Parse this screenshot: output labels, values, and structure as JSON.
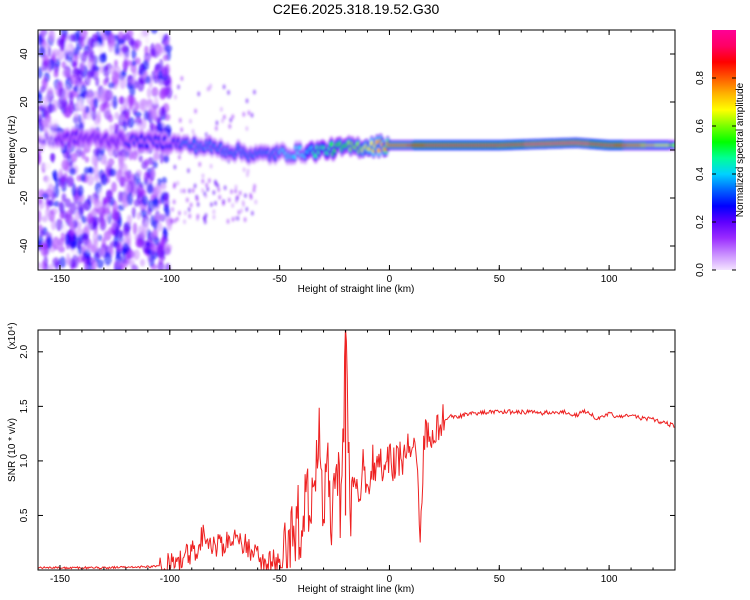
{
  "title": "C2E6.2025.318.19.52.G30",
  "colorbar": {
    "label": "Normalized spectral amplitude",
    "ticks": [
      "0.0",
      "0.2",
      "0.4",
      "0.6",
      "0.8"
    ],
    "tick_values": [
      0.0,
      0.2,
      0.4,
      0.6,
      0.8
    ],
    "colors": [
      "#f4e4ff",
      "#c88cff",
      "#9a2cff",
      "#5e00ff",
      "#0000ff",
      "#0064ff",
      "#00d2ff",
      "#00ff96",
      "#00ff00",
      "#7aff00",
      "#ffff00",
      "#ffb400",
      "#ff5a00",
      "#ff0000",
      "#ff0064",
      "#ff0096"
    ]
  },
  "chart_data": [
    {
      "type": "heatmap",
      "title": "C2E6.2025.318.19.52.G30",
      "xlabel": "Height of straight line (km)",
      "ylabel": "Frequency (Hz)",
      "xlim": [
        -160,
        130
      ],
      "ylim": [
        -50,
        50
      ],
      "xticks": [
        -150,
        -100,
        -50,
        0,
        50,
        100
      ],
      "yticks": [
        -40,
        -20,
        0,
        20,
        40
      ],
      "colorscale_label": "Normalized spectral amplitude",
      "ridge": [
        {
          "x": -160,
          "f": 4,
          "a": 0.2
        },
        {
          "x": -140,
          "f": 5,
          "a": 0.22
        },
        {
          "x": -120,
          "f": 4,
          "a": 0.25
        },
        {
          "x": -100,
          "f": 3,
          "a": 0.3
        },
        {
          "x": -80,
          "f": 1,
          "a": 0.35
        },
        {
          "x": -60,
          "f": -2,
          "a": 0.35
        },
        {
          "x": -40,
          "f": -1,
          "a": 0.4
        },
        {
          "x": -20,
          "f": 1,
          "a": 0.55
        },
        {
          "x": 0,
          "f": 2,
          "a": 0.75
        },
        {
          "x": 20,
          "f": 2,
          "a": 0.9
        },
        {
          "x": 50,
          "f": 2,
          "a": 0.92
        },
        {
          "x": 85,
          "f": 3,
          "a": 0.97
        },
        {
          "x": 100,
          "f": 2,
          "a": 0.9
        },
        {
          "x": 130,
          "f": 2,
          "a": 0.6
        }
      ]
    },
    {
      "type": "line",
      "xlabel": "Height of straight line (km)",
      "ylabel": "SNR (10 * v/v)",
      "y_multiplier": "(x10⁴)",
      "xlim": [
        -160,
        130
      ],
      "ylim": [
        0,
        2.2
      ],
      "xticks": [
        -150,
        -100,
        -50,
        0,
        50,
        100
      ],
      "yticks": [
        0.5,
        1.0,
        1.5,
        2.0
      ],
      "color": "#ee2222",
      "x": [
        -160,
        -130,
        -110,
        -100,
        -95,
        -90,
        -85,
        -80,
        -75,
        -70,
        -65,
        -60,
        -55,
        -50,
        -45,
        -42,
        -40,
        -38,
        -35,
        -32,
        -30,
        -28,
        -26,
        -24,
        -22,
        -20,
        -18,
        -16,
        -14,
        -12,
        -10,
        -8,
        -6,
        -4,
        -2,
        0,
        2,
        4,
        6,
        8,
        10,
        12,
        14,
        16,
        18,
        20,
        22,
        25,
        28,
        30,
        35,
        40,
        50,
        60,
        70,
        80,
        85,
        90,
        95,
        100,
        105,
        110,
        115,
        120,
        125,
        130
      ],
      "y": [
        0.02,
        0.02,
        0.03,
        0.04,
        0.08,
        0.15,
        0.3,
        0.22,
        0.25,
        0.32,
        0.2,
        0.12,
        0.08,
        0.07,
        0.25,
        0.45,
        0.35,
        0.65,
        0.55,
        1.15,
        0.6,
        1.05,
        0.45,
        1.0,
        0.5,
        2.2,
        0.55,
        0.85,
        0.7,
        0.95,
        0.78,
        1.0,
        0.85,
        1.05,
        0.9,
        1.1,
        0.95,
        1.05,
        0.98,
        1.2,
        1.05,
        1.15,
        0.4,
        1.25,
        1.2,
        1.3,
        1.35,
        1.38,
        1.42,
        1.4,
        1.43,
        1.44,
        1.45,
        1.45,
        1.44,
        1.45,
        1.42,
        1.46,
        1.38,
        1.43,
        1.4,
        1.42,
        1.39,
        1.38,
        1.35,
        1.32
      ]
    }
  ]
}
